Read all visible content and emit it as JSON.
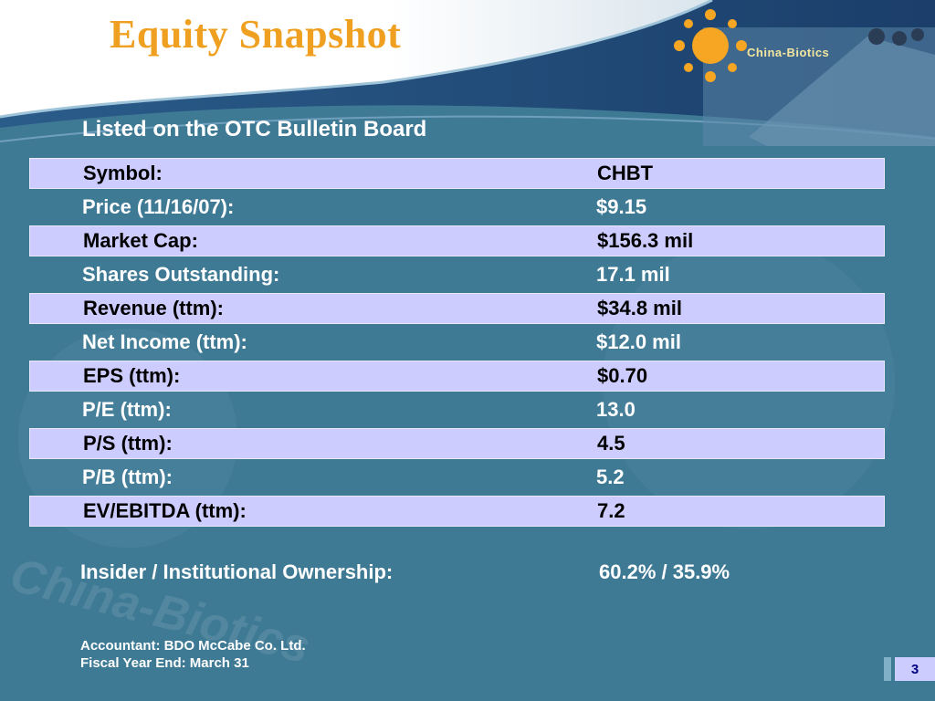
{
  "title": "Equity Snapshot",
  "logo_text": "China-Biotics",
  "subtitle": "Listed on the OTC Bulletin Board",
  "rows": [
    {
      "label": "Symbol:",
      "value": "CHBT"
    },
    {
      "label": "Price (11/16/07):",
      "value": "$9.15"
    },
    {
      "label": "Market Cap:",
      "value": "$156.3 mil"
    },
    {
      "label": "Shares Outstanding:",
      "value": "17.1 mil"
    },
    {
      "label": "Revenue (ttm):",
      "value": "$34.8 mil"
    },
    {
      "label": "Net Income (ttm):",
      "value": "$12.0 mil"
    },
    {
      "label": "EPS (ttm):",
      "value": "$0.70"
    },
    {
      "label": "P/E (ttm):",
      "value": "13.0"
    },
    {
      "label": "P/S (ttm):",
      "value": "4.5"
    },
    {
      "label": "P/B (ttm):",
      "value": "5.2"
    },
    {
      "label": "EV/EBITDA (ttm):",
      "value": "7.2"
    }
  ],
  "ownership": {
    "label": "Insider / Institutional Ownership:",
    "value": "60.2% / 35.9%"
  },
  "footer": {
    "accountant": "Accountant:  BDO McCabe Co. Ltd.",
    "fiscal_year": "Fiscal Year End:  March 31"
  },
  "page_number": "3",
  "watermark": "China-Biotics",
  "colors": {
    "background": "#3f7a95",
    "title": "#f0a020",
    "shaded_row": "#ccccff",
    "header_band": "#1f4a78"
  }
}
